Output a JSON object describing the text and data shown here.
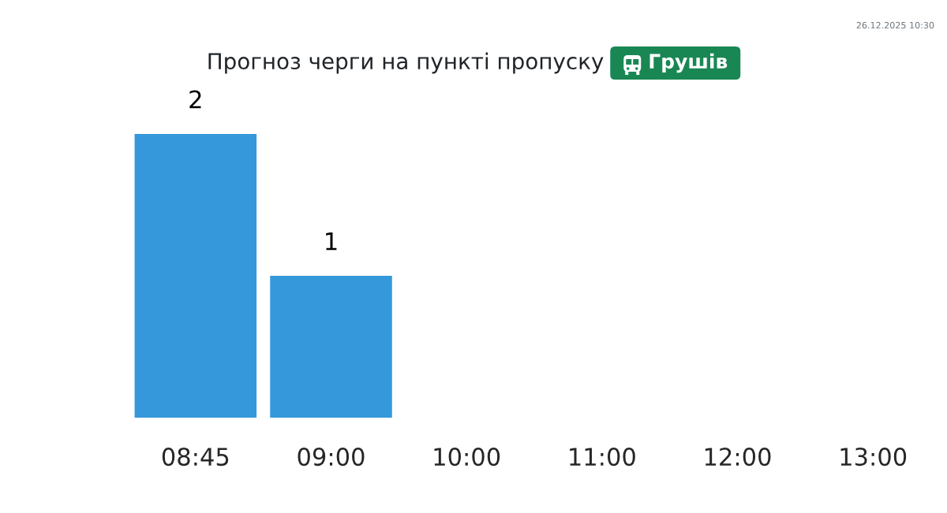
{
  "chart_data": {
    "type": "bar",
    "title": "Прогноз черги на пункті пропуску",
    "subtitle": "Грушів",
    "categories": [
      "08:45",
      "09:00",
      "10:00",
      "11:00",
      "12:00",
      "13:00"
    ],
    "values": [
      2,
      1,
      null,
      null,
      null,
      null
    ],
    "value_labels": [
      "2",
      "1",
      null,
      null,
      null,
      null
    ],
    "color": "#3598db",
    "annotations": [
      "26.12.2025 10:30"
    ]
  }
}
